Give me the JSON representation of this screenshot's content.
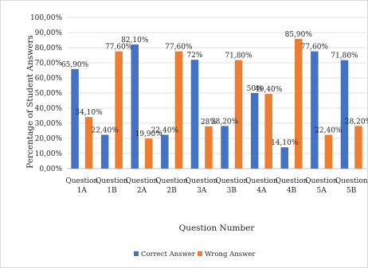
{
  "chart_data": {
    "type": "bar",
    "title": "",
    "xlabel": "Question Number",
    "ylabel": "Percentage of Student Answers",
    "ylim": [
      0,
      100
    ],
    "ytick_labels": [
      "0,00%",
      "10,00%",
      "20,00%",
      "30,00%",
      "40,00%",
      "50,00%",
      "60,00%",
      "70,00%",
      "80,00%",
      "90,00%",
      "100,00%"
    ],
    "grid": true,
    "legend": "bottom",
    "categories": [
      [
        "Question",
        "1A"
      ],
      [
        "Question",
        "1B"
      ],
      [
        "Question",
        "2A"
      ],
      [
        "Question",
        "2B"
      ],
      [
        "Question",
        "3A"
      ],
      [
        "Question",
        "3B"
      ],
      [
        "Question",
        "4A"
      ],
      [
        "Question",
        "4B"
      ],
      [
        "Question",
        "5A"
      ],
      [
        "Question",
        "5B"
      ]
    ],
    "series": [
      {
        "name": "Correct Answer",
        "color": "#4472c4",
        "values": [
          65.9,
          22.4,
          82.1,
          22.4,
          72,
          28.2,
          50,
          14.1,
          77.6,
          71.8
        ],
        "labels": [
          "65,90%",
          "22,40%",
          "82,10%",
          "22,40%",
          "72%",
          "28,20%",
          "50%",
          "14,10%",
          "77,60%",
          "71,80%"
        ]
      },
      {
        "name": "Wrong Answer",
        "color": "#ed7d31",
        "values": [
          34.1,
          77.6,
          19.9,
          77.6,
          28,
          71.8,
          49.4,
          85.9,
          22.4,
          28.2
        ],
        "labels": [
          "34,10%",
          "77,60%",
          "19,90%",
          "77,60%",
          "28%",
          "71,80%",
          "49,40%",
          "85,90%",
          "22,40%",
          "28,20%"
        ]
      }
    ]
  }
}
